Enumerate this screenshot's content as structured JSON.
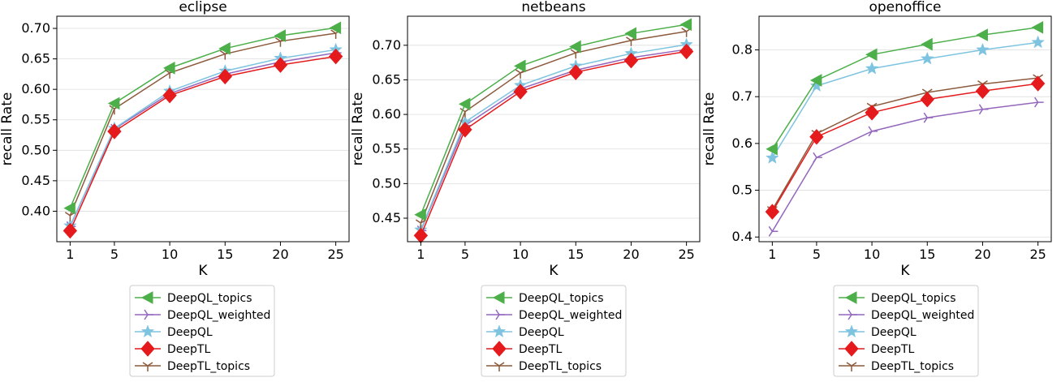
{
  "chart_data": [
    {
      "type": "line",
      "title": "eclipse",
      "xlabel": "K",
      "ylabel": "recall Rate",
      "x": [
        1,
        5,
        10,
        15,
        20,
        25
      ],
      "ylim": [
        0.35,
        0.72
      ],
      "yticks": [
        0.4,
        0.45,
        0.5,
        0.55,
        0.6,
        0.65,
        0.7
      ],
      "ytick_labels": [
        "0.40",
        "0.45",
        "0.50",
        "0.55",
        "0.60",
        "0.65",
        "0.70"
      ],
      "series": [
        {
          "name": "DeepQL_topics",
          "values": [
            0.405,
            0.577,
            0.635,
            0.667,
            0.688,
            0.701
          ]
        },
        {
          "name": "DeepQL_weighted",
          "values": [
            0.375,
            0.535,
            0.593,
            0.625,
            0.645,
            0.66
          ]
        },
        {
          "name": "DeepQL",
          "values": [
            0.376,
            0.536,
            0.597,
            0.63,
            0.651,
            0.665
          ]
        },
        {
          "name": "DeepTL",
          "values": [
            0.368,
            0.531,
            0.59,
            0.621,
            0.64,
            0.654
          ]
        },
        {
          "name": "DeepTL_topics",
          "values": [
            0.393,
            0.568,
            0.627,
            0.658,
            0.679,
            0.692
          ]
        }
      ]
    },
    {
      "type": "line",
      "title": "netbeans",
      "xlabel": "K",
      "ylabel": "recall Rate",
      "x": [
        1,
        5,
        10,
        15,
        20,
        25
      ],
      "ylim": [
        0.416,
        0.742
      ],
      "yticks": [
        0.45,
        0.5,
        0.55,
        0.6,
        0.65,
        0.7
      ],
      "ytick_labels": [
        "0.45",
        "0.50",
        "0.55",
        "0.60",
        "0.65",
        "0.70"
      ],
      "series": [
        {
          "name": "DeepQL_topics",
          "values": [
            0.455,
            0.615,
            0.67,
            0.698,
            0.717,
            0.73
          ]
        },
        {
          "name": "DeepQL_weighted",
          "values": [
            0.432,
            0.584,
            0.637,
            0.664,
            0.682,
            0.694
          ]
        },
        {
          "name": "DeepQL",
          "values": [
            0.433,
            0.589,
            0.642,
            0.67,
            0.688,
            0.701
          ]
        },
        {
          "name": "DeepTL",
          "values": [
            0.425,
            0.578,
            0.633,
            0.661,
            0.678,
            0.691
          ]
        },
        {
          "name": "DeepTL_topics",
          "values": [
            0.443,
            0.604,
            0.66,
            0.689,
            0.707,
            0.72
          ]
        }
      ]
    },
    {
      "type": "line",
      "title": "openoffice",
      "xlabel": "K",
      "ylabel": "recall Rate",
      "x": [
        1,
        5,
        10,
        15,
        20,
        25
      ],
      "ylim": [
        0.39,
        0.872
      ],
      "yticks": [
        0.4,
        0.5,
        0.6,
        0.7,
        0.8
      ],
      "ytick_labels": [
        "0.4",
        "0.5",
        "0.6",
        "0.7",
        "0.8"
      ],
      "series": [
        {
          "name": "DeepQL_topics",
          "values": [
            0.588,
            0.735,
            0.79,
            0.812,
            0.832,
            0.848
          ]
        },
        {
          "name": "DeepQL_weighted",
          "values": [
            0.412,
            0.57,
            0.626,
            0.655,
            0.673,
            0.688
          ]
        },
        {
          "name": "DeepQL",
          "values": [
            0.569,
            0.723,
            0.76,
            0.781,
            0.8,
            0.816
          ]
        },
        {
          "name": "DeepTL",
          "values": [
            0.454,
            0.614,
            0.666,
            0.694,
            0.712,
            0.728
          ]
        },
        {
          "name": "DeepTL_topics",
          "values": [
            0.458,
            0.621,
            0.679,
            0.709,
            0.727,
            0.74
          ]
        }
      ]
    }
  ],
  "colors": {
    "DeepQL_topics": "#4daf4a",
    "DeepQL_weighted": "#9467bd",
    "DeepQL": "#7ec4e0",
    "DeepTL": "#e41a1c",
    "DeepTL_topics": "#8c5a3c"
  },
  "markers": {
    "DeepQL_topics": "triangle-left",
    "DeepQL_weighted": "tri-right",
    "DeepQL": "star",
    "DeepTL": "diamond",
    "DeepTL_topics": "tri-down"
  },
  "legend_placement": "below each plot",
  "grid": "horizontal"
}
